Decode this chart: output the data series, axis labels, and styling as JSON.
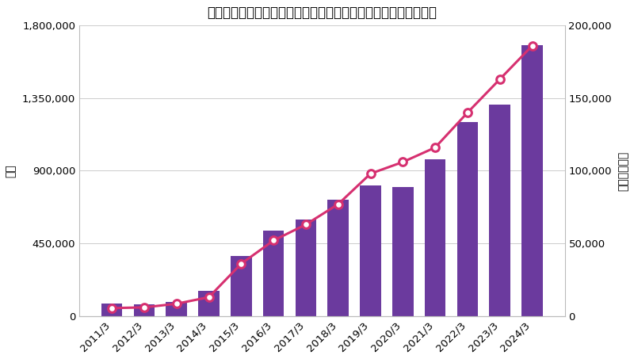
{
  "title": "ラップ口座の件数と金額の推移（データ：日本投資顧問業協会）",
  "categories": [
    "2011/3",
    "2012/3",
    "2013/3",
    "2014/3",
    "2015/3",
    "2016/3",
    "2017/3",
    "2018/3",
    "2019/3",
    "2020/3",
    "2021/3",
    "2022/3",
    "2023/3",
    "2024/3"
  ],
  "bar_values": [
    80000,
    72000,
    90000,
    155000,
    370000,
    530000,
    600000,
    720000,
    810000,
    800000,
    970000,
    1200000,
    1310000,
    1680000
  ],
  "line_values": [
    5500,
    6000,
    8500,
    13000,
    36000,
    52000,
    63000,
    77000,
    98000,
    106000,
    116000,
    140000,
    163000,
    186000
  ],
  "bar_color": "#6B3A9E",
  "line_color": "#D63070",
  "marker_face_color": "#FFFFFF",
  "marker_edge_color": "#D63070",
  "ylabel_left": "件数",
  "ylabel_right": "金額（億円）",
  "ylim_left": [
    0,
    1800000
  ],
  "ylim_right": [
    0,
    200000
  ],
  "yticks_left": [
    0,
    450000,
    900000,
    1350000,
    1800000
  ],
  "yticks_right": [
    0,
    50000,
    100000,
    150000,
    200000
  ],
  "ytick_labels_left": [
    "0",
    "450,000",
    "900,000",
    "1,350,000",
    "1,800,000"
  ],
  "ytick_labels_right": [
    "0",
    "50,000",
    "100,000",
    "150,000",
    "200,000"
  ],
  "background_color": "#FFFFFF",
  "grid_color": "#CCCCCC",
  "title_fontsize": 12,
  "axis_label_fontsize": 10,
  "tick_fontsize": 9.5
}
